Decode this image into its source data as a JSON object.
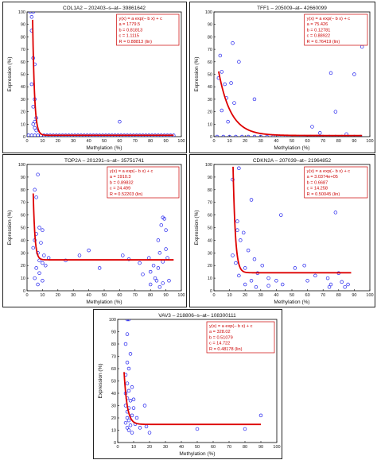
{
  "chart_data": [
    {
      "type": "scatter",
      "title": "COL1A2 – 202403–s–at– 39861642",
      "xlabel": "Methylation (%)",
      "ylabel": "Expression (%)",
      "xlim": [
        0,
        100
      ],
      "ylim": [
        0,
        100
      ],
      "xticks": [
        "0",
        "10",
        "20",
        "30",
        "40",
        "50",
        "60",
        "70",
        "80",
        "90",
        "100"
      ],
      "yticks": [
        "0",
        "10",
        "20",
        "30",
        "40",
        "50",
        "60",
        "70",
        "80",
        "90",
        "100"
      ],
      "annotation": [
        "y(x) = a exp(– b x) + c",
        "a = 1779.5",
        "b = 0.81813",
        "c = 1.1115",
        "R = 0.88813  (lin)"
      ],
      "fit": {
        "a": 1779.5,
        "b": 0.81813,
        "c": 1.1115,
        "x_from": 3,
        "x_to": 95
      },
      "points": [
        [
          2,
          100
        ],
        [
          4,
          100
        ],
        [
          3,
          96
        ],
        [
          3,
          85
        ],
        [
          4,
          63
        ],
        [
          5,
          58
        ],
        [
          3,
          42
        ],
        [
          5,
          30
        ],
        [
          4,
          24
        ],
        [
          6,
          15
        ],
        [
          5,
          12
        ],
        [
          4,
          10
        ],
        [
          5,
          7
        ],
        [
          6,
          5
        ],
        [
          60,
          12
        ],
        [
          1,
          1
        ],
        [
          3,
          1
        ],
        [
          5,
          1
        ],
        [
          7,
          1
        ],
        [
          9,
          1
        ],
        [
          11,
          1
        ],
        [
          13,
          1
        ],
        [
          15,
          1
        ],
        [
          17,
          1
        ],
        [
          19,
          1
        ],
        [
          21,
          1
        ],
        [
          23,
          1
        ],
        [
          25,
          1
        ],
        [
          27,
          1
        ],
        [
          29,
          1
        ],
        [
          31,
          1
        ],
        [
          33,
          1
        ],
        [
          35,
          1
        ],
        [
          37,
          1
        ],
        [
          39,
          1
        ],
        [
          41,
          1
        ],
        [
          43,
          1
        ],
        [
          45,
          1
        ],
        [
          47,
          1
        ],
        [
          49,
          1
        ],
        [
          51,
          1
        ],
        [
          53,
          1
        ],
        [
          55,
          1
        ],
        [
          57,
          1
        ],
        [
          59,
          1
        ],
        [
          61,
          1
        ],
        [
          63,
          1
        ],
        [
          65,
          1
        ],
        [
          67,
          1
        ],
        [
          69,
          1
        ],
        [
          71,
          1
        ],
        [
          73,
          1
        ],
        [
          75,
          1
        ],
        [
          77,
          1
        ],
        [
          79,
          1
        ],
        [
          81,
          1
        ],
        [
          83,
          1
        ],
        [
          85,
          1
        ],
        [
          87,
          1
        ],
        [
          89,
          1
        ],
        [
          91,
          1
        ],
        [
          93,
          1
        ],
        [
          95,
          1
        ]
      ]
    },
    {
      "type": "scatter",
      "title": "TFF1 – 205009–at– 42660099",
      "xlabel": "Methylation (%)",
      "ylabel": "Expression (%)",
      "xlim": [
        0,
        100
      ],
      "ylim": [
        0,
        100
      ],
      "xticks": [
        "0",
        "10",
        "20",
        "30",
        "40",
        "50",
        "60",
        "70",
        "80",
        "90",
        "100"
      ],
      "yticks": [
        "0",
        "10",
        "20",
        "30",
        "40",
        "50",
        "60",
        "70",
        "80",
        "90",
        "100"
      ],
      "annotation": [
        "y(x) = a exp(– b x) + c",
        "a = 75.426",
        "b = 0.12781",
        "c = 0.88922",
        "R = 0.76419  (lin)"
      ],
      "fit": {
        "a": 75.426,
        "b": 0.12781,
        "c": 0.88922,
        "x_from": 3,
        "x_to": 95
      },
      "points": [
        [
          12,
          75
        ],
        [
          4,
          65
        ],
        [
          16,
          60
        ],
        [
          5,
          52
        ],
        [
          3,
          47
        ],
        [
          11,
          43
        ],
        [
          7,
          42
        ],
        [
          8,
          31
        ],
        [
          26,
          30
        ],
        [
          13,
          27
        ],
        [
          5,
          21
        ],
        [
          9,
          12
        ],
        [
          75,
          51
        ],
        [
          90,
          50
        ],
        [
          95,
          72
        ],
        [
          78,
          20
        ],
        [
          63,
          8
        ],
        [
          68,
          3
        ],
        [
          85,
          2
        ],
        [
          2,
          0
        ],
        [
          6,
          0
        ],
        [
          10,
          0
        ],
        [
          14,
          0
        ],
        [
          18,
          0
        ],
        [
          22,
          0
        ],
        [
          26,
          0
        ],
        [
          30,
          0
        ],
        [
          34,
          0
        ],
        [
          38,
          0
        ],
        [
          42,
          0
        ],
        [
          46,
          0
        ],
        [
          50,
          0
        ],
        [
          54,
          0
        ],
        [
          58,
          0
        ],
        [
          62,
          0
        ],
        [
          66,
          0
        ],
        [
          70,
          0
        ],
        [
          74,
          0
        ],
        [
          78,
          0
        ],
        [
          82,
          0
        ],
        [
          86,
          0
        ],
        [
          90,
          0
        ],
        [
          94,
          0
        ]
      ]
    },
    {
      "type": "scatter",
      "title": "TOP2A – 201291–s–at– 35751741",
      "xlabel": "Methylation (%)",
      "ylabel": "Expression (%)",
      "xlim": [
        0,
        100
      ],
      "ylim": [
        0,
        100
      ],
      "xticks": [
        "0",
        "10",
        "20",
        "30",
        "40",
        "50",
        "60",
        "70",
        "80",
        "90",
        "100"
      ],
      "yticks": [
        "0",
        "10",
        "20",
        "30",
        "40",
        "50",
        "60",
        "70",
        "80",
        "90",
        "100"
      ],
      "annotation": [
        "y(x) = a exp(– b x) + c",
        "a = 1910.3",
        "b = 0.89832",
        "c = 24.499",
        "R = 0.52203  (lin)"
      ],
      "fit": {
        "a": 1910.3,
        "b": 0.89832,
        "c": 24.499,
        "x_from": 4,
        "x_to": 95
      },
      "points": [
        [
          7,
          92
        ],
        [
          5,
          80
        ],
        [
          6,
          74
        ],
        [
          8,
          50
        ],
        [
          10,
          48
        ],
        [
          6,
          45
        ],
        [
          5,
          40
        ],
        [
          9,
          38
        ],
        [
          4,
          34
        ],
        [
          7,
          30
        ],
        [
          11,
          28
        ],
        [
          8,
          24
        ],
        [
          10,
          22
        ],
        [
          6,
          18
        ],
        [
          8,
          14
        ],
        [
          5,
          10
        ],
        [
          7,
          5
        ],
        [
          10,
          8
        ],
        [
          12,
          20
        ],
        [
          14,
          26
        ],
        [
          25,
          24
        ],
        [
          34,
          28
        ],
        [
          40,
          32
        ],
        [
          47,
          18
        ],
        [
          62,
          28
        ],
        [
          66,
          25
        ],
        [
          73,
          22
        ],
        [
          75,
          13
        ],
        [
          79,
          26
        ],
        [
          80,
          15
        ],
        [
          82,
          20
        ],
        [
          83,
          10
        ],
        [
          84,
          8
        ],
        [
          85,
          18
        ],
        [
          85,
          40
        ],
        [
          86,
          30
        ],
        [
          87,
          52
        ],
        [
          88,
          58
        ],
        [
          88,
          23
        ],
        [
          89,
          57
        ],
        [
          90,
          48
        ],
        [
          90,
          33
        ],
        [
          91,
          26
        ],
        [
          92,
          8
        ],
        [
          88,
          6
        ],
        [
          86,
          3
        ],
        [
          80,
          5
        ]
      ]
    },
    {
      "type": "scatter",
      "title": "CDKN2A – 207039–at– 21964852",
      "xlabel": "Methylation (%)",
      "ylabel": "Expression (%)",
      "xlim": [
        0,
        100
      ],
      "ylim": [
        0,
        100
      ],
      "xticks": [
        "0",
        "10",
        "20",
        "30",
        "40",
        "50",
        "60",
        "70",
        "80",
        "90",
        "100"
      ],
      "yticks": [
        "0",
        "10",
        "20",
        "30",
        "40",
        "50",
        "60",
        "70",
        "80",
        "90",
        "100"
      ],
      "annotation": [
        "y(x) = a exp(– b x) + c",
        "a = 3.0374e+05",
        "b = 0.6687",
        "c = 14.258",
        "R = 0.50045  (lin)"
      ],
      "fit": {
        "a": 303740,
        "b": 0.6687,
        "c": 14.258,
        "x_from": 12,
        "x_to": 88
      },
      "points": [
        [
          16,
          97
        ],
        [
          12,
          88
        ],
        [
          24,
          72
        ],
        [
          15,
          55
        ],
        [
          15,
          48
        ],
        [
          19,
          46
        ],
        [
          43,
          60
        ],
        [
          17,
          40
        ],
        [
          22,
          32
        ],
        [
          12,
          28
        ],
        [
          14,
          22
        ],
        [
          26,
          25
        ],
        [
          20,
          18
        ],
        [
          28,
          14
        ],
        [
          16,
          12
        ],
        [
          24,
          8
        ],
        [
          31,
          20
        ],
        [
          35,
          10
        ],
        [
          40,
          8
        ],
        [
          44,
          5
        ],
        [
          20,
          5
        ],
        [
          27,
          3
        ],
        [
          35,
          4
        ],
        [
          52,
          18
        ],
        [
          58,
          20
        ],
        [
          60,
          8
        ],
        [
          65,
          12
        ],
        [
          73,
          10
        ],
        [
          75,
          5
        ],
        [
          78,
          62
        ],
        [
          79,
          88
        ],
        [
          80,
          14
        ],
        [
          82,
          7
        ],
        [
          84,
          3
        ],
        [
          86,
          5
        ],
        [
          74,
          3
        ]
      ]
    },
    {
      "type": "scatter",
      "title": "VAV3 – 218806–s–at– 108300111",
      "xlabel": "Methylation (%)",
      "ylabel": "Expression (%)",
      "xlim": [
        0,
        100
      ],
      "ylim": [
        0,
        100
      ],
      "xticks": [
        "0",
        "10",
        "20",
        "30",
        "40",
        "50",
        "60",
        "70",
        "80",
        "90",
        "100"
      ],
      "yticks": [
        "0",
        "10",
        "20",
        "30",
        "40",
        "50",
        "60",
        "70",
        "80",
        "90",
        "100"
      ],
      "annotation": [
        "y(x) = a exp(– b x) + c",
        "a = 328.02",
        "b = 0.51079",
        "c = 14.722",
        "R = 0.48178  (lin)"
      ],
      "fit": {
        "a": 328.02,
        "b": 0.51079,
        "c": 14.722,
        "x_from": 4,
        "x_to": 90
      },
      "points": [
        [
          6,
          100
        ],
        [
          7,
          100
        ],
        [
          6,
          88
        ],
        [
          5,
          80
        ],
        [
          8,
          72
        ],
        [
          6,
          65
        ],
        [
          7,
          60
        ],
        [
          5,
          55
        ],
        [
          6,
          48
        ],
        [
          9,
          45
        ],
        [
          7,
          42
        ],
        [
          5,
          40
        ],
        [
          6,
          36
        ],
        [
          8,
          34
        ],
        [
          5,
          30
        ],
        [
          7,
          28
        ],
        [
          6,
          25
        ],
        [
          9,
          22
        ],
        [
          6,
          20
        ],
        [
          7,
          18
        ],
        [
          5,
          16
        ],
        [
          8,
          14
        ],
        [
          6,
          12
        ],
        [
          7,
          10
        ],
        [
          9,
          8
        ],
        [
          10,
          28
        ],
        [
          12,
          20
        ],
        [
          11,
          15
        ],
        [
          18,
          13
        ],
        [
          17,
          30
        ],
        [
          10,
          35
        ],
        [
          14,
          12
        ],
        [
          20,
          8
        ],
        [
          50,
          11
        ],
        [
          80,
          11
        ],
        [
          90,
          22
        ]
      ]
    }
  ]
}
